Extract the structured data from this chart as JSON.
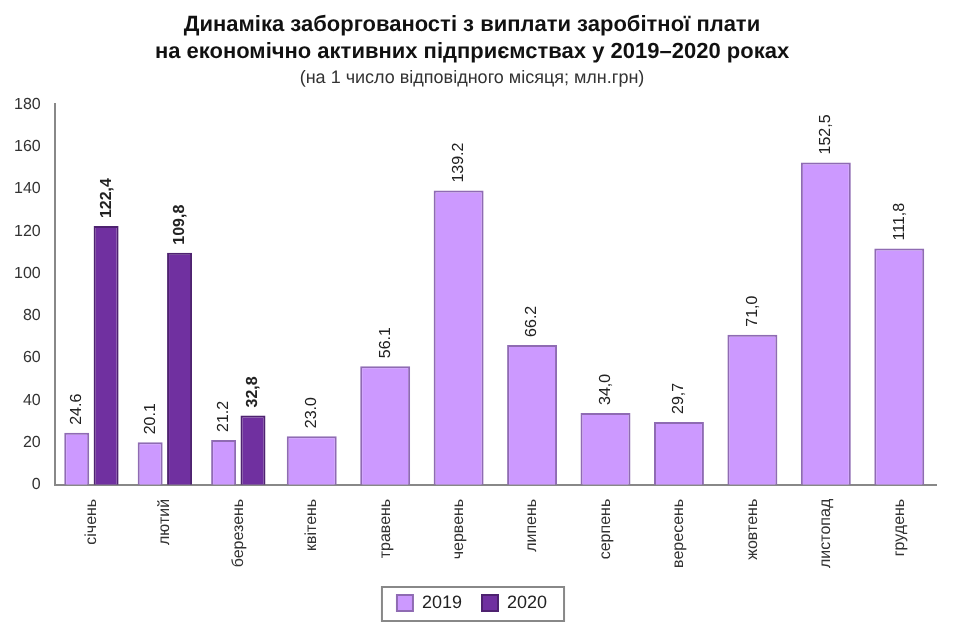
{
  "chart_data": {
    "type": "bar",
    "title": "Динаміка заборгованості з виплати заробітної плати\nна економічно активних підприємствах у 2019–2020 роках",
    "subtitle": "(на 1 число відповідного місяця; млн.грн)",
    "categories": [
      "січень",
      "лютий",
      "березень",
      "квітень",
      "травень",
      "червень",
      "липень",
      "серпень",
      "вересень",
      "жовтень",
      "листопад",
      "грудень"
    ],
    "series": [
      {
        "name": "2019",
        "color": "#cc99ff",
        "values": [
          24.6,
          20.1,
          21.2,
          23.0,
          56.1,
          139.2,
          66.2,
          34.0,
          29.7,
          71.0,
          152.5,
          111.8
        ],
        "value_labels": [
          "24.6",
          "20.1",
          "21.2",
          "23.0",
          "56.1",
          "139.2",
          "66.2",
          "34,0",
          "29,7",
          "71,0",
          "152,5",
          "111,8"
        ]
      },
      {
        "name": "2020",
        "color": "#7030a0",
        "values": [
          122.4,
          109.8,
          32.8,
          null,
          null,
          null,
          null,
          null,
          null,
          null,
          null,
          null
        ],
        "value_labels": [
          "122,4",
          "109,8",
          "32,8",
          null,
          null,
          null,
          null,
          null,
          null,
          null,
          null,
          null
        ]
      }
    ],
    "ylim": [
      0,
      180
    ],
    "yticks": [
      0,
      20,
      40,
      60,
      80,
      100,
      120,
      140,
      160,
      180
    ],
    "grid": false,
    "legend": "bottom"
  }
}
